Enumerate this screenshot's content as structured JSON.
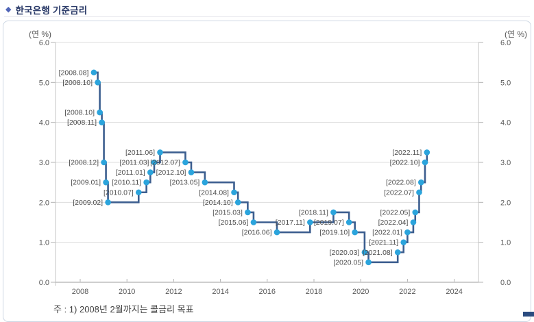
{
  "header": {
    "title": "한국은행 기준금리",
    "title_icon": "diamond-bullet"
  },
  "chart": {
    "unit_label": "(연 %)"
  },
  "footnote": {
    "text": "주 : 1) 2008년 2월까지는 콜금리 목표"
  },
  "chart_data": {
    "type": "line",
    "subtype": "step-after",
    "title": "한국은행 기준금리",
    "series_name": "기준금리",
    "ylabel": "(연 %)",
    "ylim": [
      0.0,
      6.0
    ],
    "y_ticks": [
      "0.0",
      "1.0",
      "2.0",
      "3.0",
      "4.0",
      "5.0",
      "6.0"
    ],
    "x_ticks": [
      "2008",
      "2010",
      "2012",
      "2014",
      "2016",
      "2018",
      "2020",
      "2022",
      "2024"
    ],
    "xlim_years": [
      2006.95,
      2025.1
    ],
    "grid": "horizontal",
    "legend": "none",
    "marker": "circle",
    "point_labels_visible": true,
    "points": [
      {
        "label": "[2008.08]",
        "date": "2008.08",
        "rate": 5.25
      },
      {
        "label": "[2008.10]",
        "date": "2008.10",
        "rate": 5.0
      },
      {
        "label": "[2008.10]",
        "date": "2008.10",
        "rate": 4.25
      },
      {
        "label": "[2008.11]",
        "date": "2008.11",
        "rate": 4.0
      },
      {
        "label": "[2008.12]",
        "date": "2008.12",
        "rate": 3.0
      },
      {
        "label": "[2009.01]",
        "date": "2009.01",
        "rate": 2.5
      },
      {
        "label": "[2009.02]",
        "date": "2009.02",
        "rate": 2.0
      },
      {
        "label": "[2010.07]",
        "date": "2010.07",
        "rate": 2.25
      },
      {
        "label": "[2010.11]",
        "date": "2010.11",
        "rate": 2.5
      },
      {
        "label": "[2011.01]",
        "date": "2011.01",
        "rate": 2.75
      },
      {
        "label": "[2011.03]",
        "date": "2011.03",
        "rate": 3.0
      },
      {
        "label": "[2011.06]",
        "date": "2011.06",
        "rate": 3.25
      },
      {
        "label": "[2012.07]",
        "date": "2012.07",
        "rate": 3.0
      },
      {
        "label": "[2012.10]",
        "date": "2012.10",
        "rate": 2.75
      },
      {
        "label": "[2013.05]",
        "date": "2013.05",
        "rate": 2.5
      },
      {
        "label": "[2014.08]",
        "date": "2014.08",
        "rate": 2.25
      },
      {
        "label": "[2014.10]",
        "date": "2014.10",
        "rate": 2.0
      },
      {
        "label": "[2015.03]",
        "date": "2015.03",
        "rate": 1.75
      },
      {
        "label": "[2015.06]",
        "date": "2015.06",
        "rate": 1.5
      },
      {
        "label": "[2016.06]",
        "date": "2016.06",
        "rate": 1.25
      },
      {
        "label": "[2017.11]",
        "date": "2017.11",
        "rate": 1.5
      },
      {
        "label": "[2018.11]",
        "date": "2018.11",
        "rate": 1.75
      },
      {
        "label": "[2019.07]",
        "date": "2019.07",
        "rate": 1.5
      },
      {
        "label": "[2019.10]",
        "date": "2019.10",
        "rate": 1.25
      },
      {
        "label": "[2020.03]",
        "date": "2020.03",
        "rate": 0.75
      },
      {
        "label": "[2020.05]",
        "date": "2020.05",
        "rate": 0.5
      },
      {
        "label": "[2021.08]",
        "date": "2021.08",
        "rate": 0.75
      },
      {
        "label": "[2021.11]",
        "date": "2021.11",
        "rate": 1.0
      },
      {
        "label": "[2022.01]",
        "date": "2022.01",
        "rate": 1.25
      },
      {
        "label": "[2022.04]",
        "date": "2022.04",
        "rate": 1.5
      },
      {
        "label": "[2022.05]",
        "date": "2022.05",
        "rate": 1.75
      },
      {
        "label": "[2022.07]",
        "date": "2022.07",
        "rate": 2.25
      },
      {
        "label": "[2022.08]",
        "date": "2022.08",
        "rate": 2.5
      },
      {
        "label": "[2022.10]",
        "date": "2022.10",
        "rate": 3.0
      },
      {
        "label": "[2022.11]",
        "date": "2022.11",
        "rate": 3.25
      }
    ],
    "colors": {
      "line": "#3c5e8f",
      "marker": "#2ba4dc",
      "grid": "#dcdcdc",
      "axis": "#9c9c9c",
      "side_axis": "#c6c6c6",
      "tick": "#b3b3b3",
      "tick_text": "#595959",
      "point_label_text": "#4d4d4d"
    }
  }
}
